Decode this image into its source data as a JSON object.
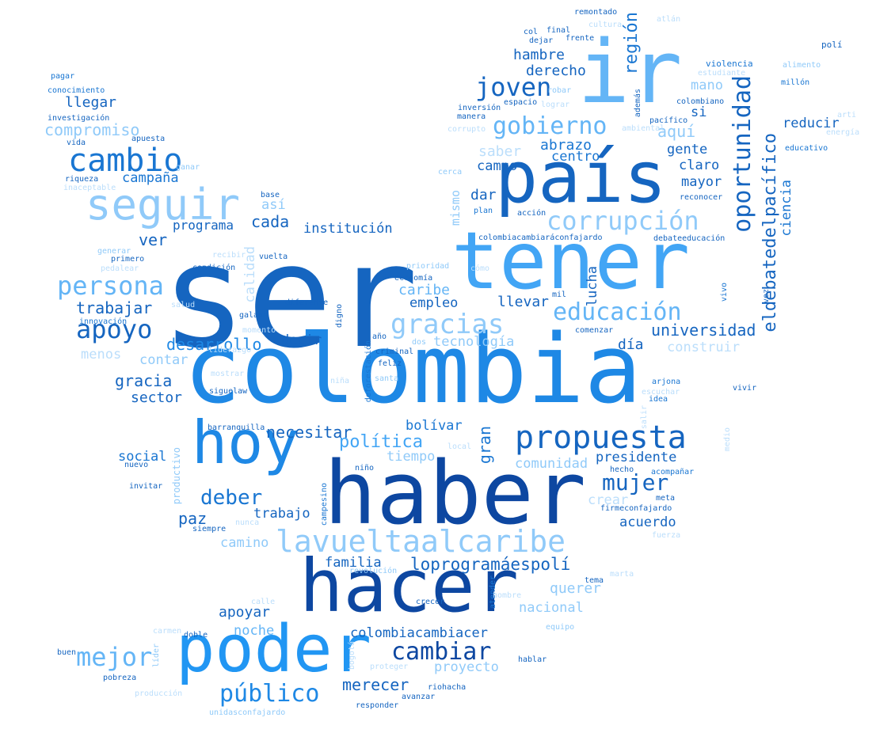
{
  "palette": [
    "#0d47a1",
    "#1565c0",
    "#1976d2",
    "#1e88e5",
    "#2196f3",
    "#42a5f5",
    "#64b5f6",
    "#90caf9",
    "#bbdefb"
  ],
  "words": [
    {
      "t": "ser",
      "c": "#1565c0"
    },
    {
      "t": "colombia",
      "c": "#1e88e5"
    },
    {
      "t": "haber",
      "c": "#0d47a1"
    },
    {
      "t": "hacer",
      "c": "#0d47a1"
    },
    {
      "t": "ir",
      "c": "#64b5f6"
    },
    {
      "t": "tener",
      "c": "#42a5f5"
    },
    {
      "t": "país",
      "c": "#1565c0"
    },
    {
      "t": "poder",
      "c": "#2196f3"
    },
    {
      "t": "hoy",
      "c": "#1e88e5"
    },
    {
      "t": "propuesta",
      "c": "#1565c0"
    },
    {
      "t": "lavueltaalcaribe",
      "c": "#90caf9"
    },
    {
      "t": "seguir",
      "c": "#90caf9"
    },
    {
      "t": "cambio",
      "c": "#1976d2"
    },
    {
      "t": "oportunidad",
      "c": "#1565c0"
    },
    {
      "t": "corrupción",
      "c": "#90caf9"
    },
    {
      "t": "gobierno",
      "c": "#64b5f6"
    },
    {
      "t": "joven",
      "c": "#1565c0"
    },
    {
      "t": "persona",
      "c": "#64b5f6"
    },
    {
      "t": "apoyo",
      "c": "#1565c0"
    },
    {
      "t": "gracias",
      "c": "#90caf9"
    },
    {
      "t": "educación",
      "c": "#64b5f6"
    },
    {
      "t": "mejor",
      "c": "#64b5f6"
    },
    {
      "t": "deber",
      "c": "#1976d2"
    },
    {
      "t": "mujer",
      "c": "#1565c0"
    },
    {
      "t": "cambiar",
      "c": "#0d47a1"
    },
    {
      "t": "público",
      "c": "#1e88e5"
    },
    {
      "t": "eldebatedelpacífico",
      "c": "#1565c0"
    },
    {
      "t": "región",
      "c": "#1976d2"
    },
    {
      "t": "hambre",
      "c": "#1565c0"
    },
    {
      "t": "derecho",
      "c": "#1565c0"
    },
    {
      "t": "abrazo",
      "c": "#1976d2"
    },
    {
      "t": "centro",
      "c": "#1976d2"
    },
    {
      "t": "aquí",
      "c": "#90caf9"
    },
    {
      "t": "saber",
      "c": "#bbdefb"
    },
    {
      "t": "campo",
      "c": "#1565c0"
    },
    {
      "t": "dar",
      "c": "#1565c0"
    },
    {
      "t": "mismo",
      "c": "#90caf9"
    },
    {
      "t": "gente",
      "c": "#1565c0"
    },
    {
      "t": "claro",
      "c": "#1565c0"
    },
    {
      "t": "mayor",
      "c": "#1565c0"
    },
    {
      "t": "si",
      "c": "#1565c0"
    },
    {
      "t": "mano",
      "c": "#90caf9"
    },
    {
      "t": "reducir",
      "c": "#1565c0"
    },
    {
      "t": "ciencia",
      "c": "#1976d2"
    },
    {
      "t": "compromiso",
      "c": "#90caf9"
    },
    {
      "t": "llegar",
      "c": "#1565c0"
    },
    {
      "t": "campaña",
      "c": "#1976d2"
    },
    {
      "t": "así",
      "c": "#90caf9"
    },
    {
      "t": "cada",
      "c": "#1565c0"
    },
    {
      "t": "programa",
      "c": "#1565c0"
    },
    {
      "t": "institución",
      "c": "#1565c0"
    },
    {
      "t": "ver",
      "c": "#1565c0"
    },
    {
      "t": "trabajar",
      "c": "#1565c0"
    },
    {
      "t": "caribe",
      "c": "#64b5f6"
    },
    {
      "t": "empleo",
      "c": "#1565c0"
    },
    {
      "t": "llevar",
      "c": "#1565c0"
    },
    {
      "t": "lucha",
      "c": "#1565c0"
    },
    {
      "t": "universidad",
      "c": "#1565c0"
    },
    {
      "t": "desarrollo",
      "c": "#1e88e5"
    },
    {
      "t": "decir",
      "c": "#1565c0"
    },
    {
      "t": "tecnología",
      "c": "#90caf9"
    },
    {
      "t": "día",
      "c": "#1565c0"
    },
    {
      "t": "construir",
      "c": "#bbdefb"
    },
    {
      "t": "menos",
      "c": "#bbdefb"
    },
    {
      "t": "contar",
      "c": "#90caf9"
    },
    {
      "t": "gracia",
      "c": "#1565c0"
    },
    {
      "t": "sector",
      "c": "#1565c0"
    },
    {
      "t": "calidad",
      "c": "#bbdefb"
    },
    {
      "t": "necesitar",
      "c": "#1565c0"
    },
    {
      "t": "política",
      "c": "#42a5f5"
    },
    {
      "t": "bolívar",
      "c": "#1976d2"
    },
    {
      "t": "gran",
      "c": "#1976d2"
    },
    {
      "t": "tiempo",
      "c": "#90caf9"
    },
    {
      "t": "comunidad",
      "c": "#90caf9"
    },
    {
      "t": "presidente",
      "c": "#1565c0"
    },
    {
      "t": "social",
      "c": "#1976d2"
    },
    {
      "t": "paz",
      "c": "#1565c0"
    },
    {
      "t": "trabajo",
      "c": "#1565c0"
    },
    {
      "t": "camino",
      "c": "#90caf9"
    },
    {
      "t": "crear",
      "c": "#bbdefb"
    },
    {
      "t": "acuerdo",
      "c": "#1565c0"
    },
    {
      "t": "familia",
      "c": "#1565c0"
    },
    {
      "t": "loprogramáespolí",
      "c": "#1565c0"
    },
    {
      "t": "querer",
      "c": "#90caf9"
    },
    {
      "t": "nacional",
      "c": "#90caf9"
    },
    {
      "t": "apoyar",
      "c": "#1565c0"
    },
    {
      "t": "noche",
      "c": "#64b5f6"
    },
    {
      "t": "colombiacambiacer",
      "c": "#1565c0"
    },
    {
      "t": "proyecto",
      "c": "#90caf9"
    },
    {
      "t": "merecer",
      "c": "#1565c0"
    },
    {
      "t": "productivo",
      "c": "#90caf9"
    },
    {
      "t": "remontado",
      "c": "#1565c0"
    },
    {
      "t": "atlán",
      "c": "#bbdefb"
    },
    {
      "t": "cultura",
      "c": "#bbdefb"
    },
    {
      "t": "col",
      "c": "#1565c0"
    },
    {
      "t": "final",
      "c": "#1565c0"
    },
    {
      "t": "dejar",
      "c": "#1565c0"
    },
    {
      "t": "frente",
      "c": "#1565c0"
    },
    {
      "t": "polí",
      "c": "#1565c0"
    },
    {
      "t": "violencia",
      "c": "#1976d2"
    },
    {
      "t": "alimento",
      "c": "#90caf9"
    },
    {
      "t": "estudiante",
      "c": "#bbdefb"
    },
    {
      "t": "millón",
      "c": "#1976d2"
    },
    {
      "t": "pagar",
      "c": "#1976d2"
    },
    {
      "t": "conocimiento",
      "c": "#1976d2"
    },
    {
      "t": "investigación",
      "c": "#1565c0"
    },
    {
      "t": "apuesta",
      "c": "#1565c0"
    },
    {
      "t": "vida",
      "c": "#1565c0"
    },
    {
      "t": "robar",
      "c": "#90caf9"
    },
    {
      "t": "lograr",
      "c": "#bbdefb"
    },
    {
      "t": "además",
      "c": "#1565c0"
    },
    {
      "t": "colombiano",
      "c": "#1565c0"
    },
    {
      "t": "inversión",
      "c": "#1565c0"
    },
    {
      "t": "espacio",
      "c": "#1565c0"
    },
    {
      "t": "manera",
      "c": "#1565c0"
    },
    {
      "t": "pacífico",
      "c": "#1565c0"
    },
    {
      "t": "arti",
      "c": "#bbdefb"
    },
    {
      "t": "energía",
      "c": "#bbdefb"
    },
    {
      "t": "corrupto",
      "c": "#bbdefb"
    },
    {
      "t": "ambiental",
      "c": "#bbdefb"
    },
    {
      "t": "educativo",
      "c": "#1976d2"
    },
    {
      "t": "ganar",
      "c": "#90caf9"
    },
    {
      "t": "cerca",
      "c": "#90caf9"
    },
    {
      "t": "riqueza",
      "c": "#1565c0"
    },
    {
      "t": "inaceptable",
      "c": "#bbdefb"
    },
    {
      "t": "base",
      "c": "#1565c0"
    },
    {
      "t": "plan",
      "c": "#1976d2"
    },
    {
      "t": "acción",
      "c": "#1565c0"
    },
    {
      "t": "reconocer",
      "c": "#1565c0"
    },
    {
      "t": "recibir",
      "c": "#bbdefb"
    },
    {
      "t": "vuelta",
      "c": "#1565c0"
    },
    {
      "t": "generar",
      "c": "#90caf9"
    },
    {
      "t": "primero",
      "c": "#1565c0"
    },
    {
      "t": "colombiacambiaráconfajardo",
      "c": "#1565c0"
    },
    {
      "t": "debateeducación",
      "c": "#1565c0"
    },
    {
      "t": "pedalear",
      "c": "#bbdefb"
    },
    {
      "t": "condición",
      "c": "#1565c0"
    },
    {
      "t": "prioridad",
      "c": "#90caf9"
    },
    {
      "t": "cómo",
      "c": "#bbdefb"
    },
    {
      "t": "economía",
      "c": "#1565c0"
    },
    {
      "t": "mil",
      "c": "#1565c0"
    },
    {
      "t": "vivo",
      "c": "#1976d2"
    },
    {
      "t": "vez",
      "c": "#1565c0"
    },
    {
      "t": "salud",
      "c": "#bbdefb"
    },
    {
      "t": "diferente",
      "c": "#1565c0"
    },
    {
      "t": "digno",
      "c": "#1565c0"
    },
    {
      "t": "galapa",
      "c": "#1565c0"
    },
    {
      "t": "innovación",
      "c": "#1976d2"
    },
    {
      "t": "momento",
      "c": "#bbdefb"
    },
    {
      "t": "año",
      "c": "#1565c0"
    },
    {
      "t": "dos",
      "c": "#90caf9"
    },
    {
      "t": "comenzar",
      "c": "#1565c0"
    },
    {
      "t": "liderazgo",
      "c": "#bbdefb"
    },
    {
      "t": "criminal",
      "c": "#1565c0"
    },
    {
      "t": "feliz",
      "c": "#1565c0"
    },
    {
      "t": "mostrar",
      "c": "#bbdefb"
    },
    {
      "t": "niña",
      "c": "#bbdefb"
    },
    {
      "t": "santa",
      "c": "#90caf9"
    },
    {
      "t": "deforestación",
      "c": "#1976d2"
    },
    {
      "t": "arjona",
      "c": "#1976d2"
    },
    {
      "t": "escuchar",
      "c": "#bbdefb"
    },
    {
      "t": "idea",
      "c": "#1976d2"
    },
    {
      "t": "vivir",
      "c": "#1565c0"
    },
    {
      "t": "siguelaw",
      "c": "#1565c0"
    },
    {
      "t": "salir",
      "c": "#bbdefb"
    },
    {
      "t": "medio",
      "c": "#bbdefb"
    },
    {
      "t": "barranquilla",
      "c": "#1565c0"
    },
    {
      "t": "local",
      "c": "#bbdefb"
    },
    {
      "t": "nuevo",
      "c": "#1565c0"
    },
    {
      "t": "niño",
      "c": "#1565c0"
    },
    {
      "t": "hecho",
      "c": "#1565c0"
    },
    {
      "t": "acompañar",
      "c": "#1976d2"
    },
    {
      "t": "invitar",
      "c": "#1565c0"
    },
    {
      "t": "meta",
      "c": "#1565c0"
    },
    {
      "t": "firmeconfajardo",
      "c": "#1565c0"
    },
    {
      "t": "campesino",
      "c": "#1976d2"
    },
    {
      "t": "siempre",
      "c": "#1565c0"
    },
    {
      "t": "nunca",
      "c": "#bbdefb"
    },
    {
      "t": "fuerza",
      "c": "#bbdefb"
    },
    {
      "t": "revolución",
      "c": "#90caf9"
    },
    {
      "t": "tema",
      "c": "#1565c0"
    },
    {
      "t": "marta",
      "c": "#bbdefb"
    },
    {
      "t": "atender",
      "c": "#1976d2"
    },
    {
      "t": "calle",
      "c": "#bbdefb"
    },
    {
      "t": "crecer",
      "c": "#1565c0"
    },
    {
      "t": "hombre",
      "c": "#bbdefb"
    },
    {
      "t": "equipo",
      "c": "#90caf9"
    },
    {
      "t": "carmen",
      "c": "#bbdefb"
    },
    {
      "t": "doble",
      "c": "#1565c0"
    },
    {
      "t": "buen",
      "c": "#1565c0"
    },
    {
      "t": "líder",
      "c": "#90caf9"
    },
    {
      "t": "bogotá",
      "c": "#bbdefb"
    },
    {
      "t": "hablar",
      "c": "#1565c0"
    },
    {
      "t": "pobreza",
      "c": "#1565c0"
    },
    {
      "t": "proteger",
      "c": "#bbdefb"
    },
    {
      "t": "riohacha",
      "c": "#1565c0"
    },
    {
      "t": "producción",
      "c": "#bbdefb"
    },
    {
      "t": "avanzar",
      "c": "#1565c0"
    },
    {
      "t": "responder",
      "c": "#1565c0"
    },
    {
      "t": "unidasconfajardo",
      "c": "#90caf9"
    }
  ]
}
